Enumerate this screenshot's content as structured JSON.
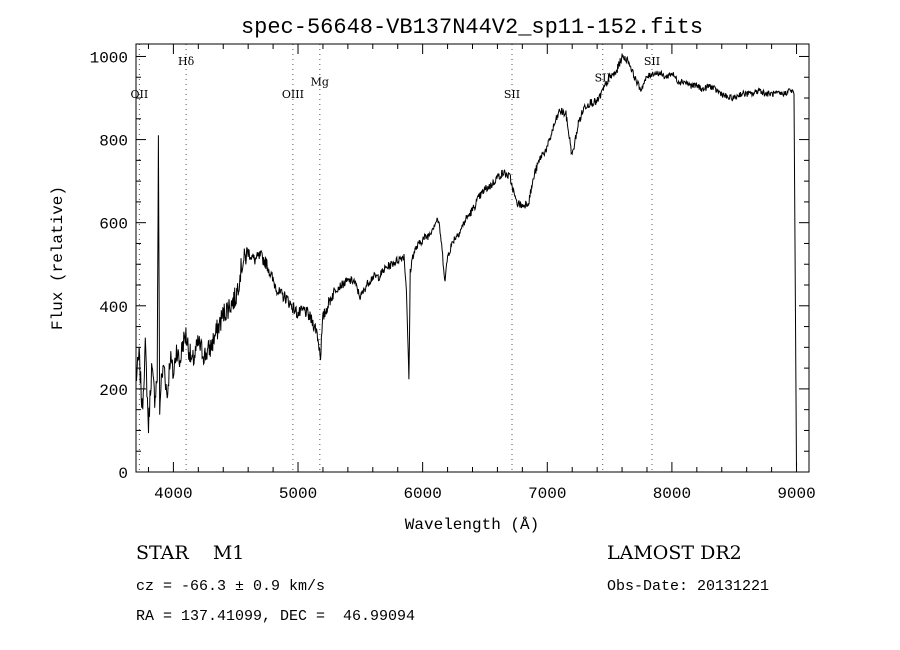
{
  "chart_data": {
    "type": "line",
    "title": "spec-56648-VB137N44V2_sp11-152.fits",
    "xlabel": "Wavelength (Å)",
    "ylabel": "Flux (relative)",
    "xlim": [
      3700,
      9100
    ],
    "ylim": [
      0,
      1030
    ],
    "x_ticks": [
      {
        "value": 4000,
        "label": "4000"
      },
      {
        "value": 5000,
        "label": "5000"
      },
      {
        "value": 6000,
        "label": "6000"
      },
      {
        "value": 7000,
        "label": "7000"
      },
      {
        "value": 8000,
        "label": "8000"
      },
      {
        "value": 9000,
        "label": "9000"
      }
    ],
    "y_ticks": [
      {
        "value": 0,
        "label": "0"
      },
      {
        "value": 200,
        "label": "200"
      },
      {
        "value": 400,
        "label": "400"
      },
      {
        "value": 600,
        "label": "600"
      },
      {
        "value": 800,
        "label": "800"
      },
      {
        "value": 1000,
        "label": "1000"
      }
    ],
    "grid": false,
    "line_color": "#000000",
    "line_markers": [
      {
        "label": "OII",
        "x": 3727,
        "label_y": 900
      },
      {
        "label": "Hδ",
        "x": 4102,
        "label_y": 980
      },
      {
        "label": "OIII",
        "x": 4959,
        "label_y": 900
      },
      {
        "label": "Mg",
        "x": 5175,
        "label_y": 930
      },
      {
        "label": "SII",
        "x": 6717,
        "label_y": 900
      },
      {
        "label": "SII",
        "x": 7445,
        "label_y": 940
      },
      {
        "label": "SII",
        "x": 7840,
        "label_y": 980
      }
    ],
    "series": [
      {
        "x": [
          3700,
          3725,
          3750,
          3775,
          3800,
          3825,
          3850,
          3870,
          3880,
          3890,
          3900,
          3925,
          3950,
          3975,
          4000,
          4025,
          4050,
          4075,
          4100,
          4150,
          4200,
          4250,
          4300,
          4350,
          4400,
          4450,
          4500,
          4550,
          4600,
          4650,
          4700,
          4750,
          4800,
          4850,
          4900,
          4950,
          5000,
          5050,
          5100,
          5150,
          5180,
          5200,
          5250,
          5300,
          5350,
          5400,
          5450,
          5500,
          5550,
          5600,
          5650,
          5700,
          5750,
          5800,
          5850,
          5870,
          5880,
          5890,
          5900,
          5920,
          5950,
          6000,
          6050,
          6100,
          6120,
          6140,
          6160,
          6180,
          6200,
          6250,
          6300,
          6350,
          6400,
          6450,
          6500,
          6550,
          6600,
          6650,
          6700,
          6750,
          6800,
          6850,
          6900,
          6950,
          7000,
          7050,
          7100,
          7150,
          7200,
          7250,
          7300,
          7350,
          7400,
          7450,
          7500,
          7550,
          7600,
          7650,
          7700,
          7750,
          7800,
          7850,
          7900,
          7950,
          8000,
          8050,
          8100,
          8150,
          8200,
          8250,
          8300,
          8350,
          8400,
          8450,
          8500,
          8550,
          8600,
          8650,
          8700,
          8750,
          8800,
          8850,
          8900,
          8950,
          8980,
          9000
        ],
        "y": [
          220,
          280,
          150,
          300,
          110,
          250,
          180,
          230,
          790,
          140,
          210,
          260,
          180,
          280,
          230,
          300,
          260,
          310,
          330,
          260,
          310,
          280,
          300,
          340,
          380,
          400,
          420,
          500,
          530,
          510,
          520,
          500,
          460,
          430,
          420,
          400,
          380,
          390,
          370,
          340,
          280,
          370,
          410,
          440,
          450,
          460,
          460,
          420,
          450,
          470,
          470,
          490,
          500,
          510,
          520,
          440,
          330,
          220,
          480,
          520,
          540,
          560,
          570,
          600,
          610,
          580,
          520,
          460,
          520,
          560,
          580,
          610,
          630,
          660,
          680,
          690,
          710,
          720,
          710,
          650,
          640,
          650,
          720,
          760,
          780,
          830,
          870,
          860,
          760,
          840,
          880,
          890,
          890,
          920,
          950,
          960,
          1000,
          990,
          950,
          920,
          950,
          960,
          960,
          950,
          960,
          940,
          940,
          930,
          930,
          920,
          930,
          920,
          910,
          900,
          900,
          910,
          910,
          910,
          920,
          910,
          910,
          910,
          910,
          920,
          910,
          0
        ]
      }
    ]
  },
  "footer": {
    "object_class": "STAR    M1",
    "cz": "cz = -66.3 ± 0.9 km/s",
    "coords": "RA = 137.41099, DEC =  46.99094",
    "survey": "LAMOST DR2",
    "obs_date": "Obs-Date: 20131221"
  }
}
